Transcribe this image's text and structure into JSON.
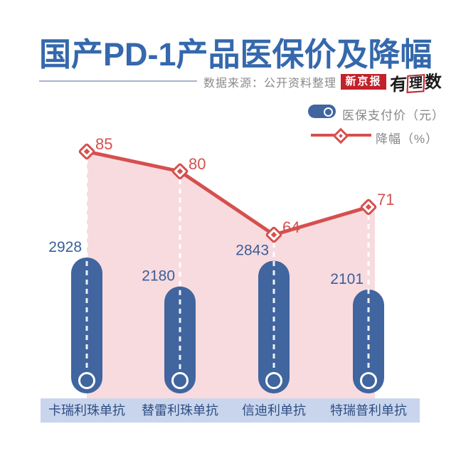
{
  "title": "国产PD-1产品医保价及降幅",
  "source_label": "数据来源：公开资料整理",
  "logo": {
    "badge": "新京报",
    "brand": "有理数",
    "brand_prefix": "有",
    "brand_mid": "理",
    "brand_suffix": "数"
  },
  "legend": {
    "bar_label": "医保支付价（元）",
    "line_label": "降幅（%）"
  },
  "colors": {
    "title_blue": "#3568ac",
    "bar_blue": "#40659f",
    "area_pink": "#f8dbdf",
    "line_red": "#d5504e",
    "band_blue": "#c9d5ed",
    "value_blue": "#3b5f98",
    "category_navy": "#2e4d82",
    "badge_red": "#c2222a",
    "source_gray": "#8a8a8a",
    "dash_white": "rgba(255,255,255,0.9)"
  },
  "chart_data": {
    "type": "bar",
    "title": "国产PD-1产品医保价及降幅",
    "categories": [
      "卡瑞利珠单抗",
      "替雷利珠单抗",
      "信迪利单抗",
      "特瑞普利单抗"
    ],
    "series": [
      {
        "name": "医保支付价（元）",
        "kind": "bar",
        "values": [
          2928,
          2180,
          2843,
          2101
        ]
      },
      {
        "name": "降幅（%）",
        "kind": "line",
        "values": [
          85,
          80,
          64,
          71
        ]
      }
    ],
    "xlabel": "",
    "ylabel": "",
    "grid": false,
    "legend_position": "top-right",
    "value_labels_shown": true
  }
}
